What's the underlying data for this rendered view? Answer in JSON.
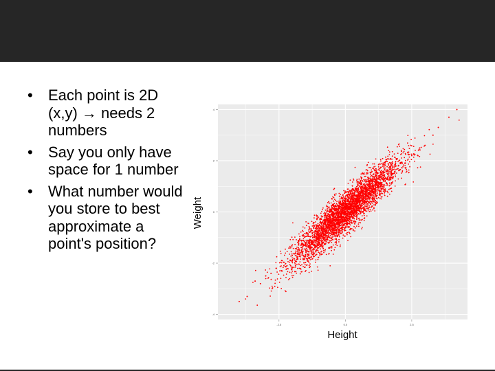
{
  "slide": {
    "bullets": [
      {
        "before": "Each point is 2D (x,y) ",
        "arrow": "→",
        "after": " needs 2 numbers"
      },
      {
        "before": "Say you only have space for 1 number",
        "arrow": "",
        "after": ""
      },
      {
        "before": "What number would you store to best approximate a point's position?",
        "arrow": "",
        "after": ""
      }
    ]
  },
  "colors": {
    "title_bar": "#262626",
    "panel_bg": "#EBEBEB",
    "grid": "#FFFFFF",
    "points": "#FF0000"
  },
  "chart_data": {
    "type": "scatter",
    "xlabel": "Height",
    "ylabel": "Weight",
    "xlim": [
      -4.8,
      4.6
    ],
    "ylim": [
      -4.2,
      4.2
    ],
    "x_ticks": [
      -2.5,
      0.0,
      2.5
    ],
    "x_tick_labels": [
      "-2.5",
      "0.0",
      "2.5"
    ],
    "y_ticks": [
      -4,
      -2,
      0,
      2,
      4
    ],
    "y_tick_labels": [
      "-4",
      "-2",
      "0",
      "2",
      "4"
    ],
    "grid": true,
    "correlation": 0.92,
    "n_points": 4000,
    "points": [
      [
        -4.0,
        -3.5
      ],
      [
        -3.7,
        -3.3
      ],
      [
        -3.4,
        -2.7
      ],
      [
        -3.2,
        -2.8
      ],
      [
        -3.0,
        -2.5
      ],
      [
        -2.8,
        -2.4
      ],
      [
        -2.6,
        -2.2
      ],
      [
        -2.4,
        -1.9
      ],
      [
        -2.2,
        -2.1
      ],
      [
        -2.0,
        -1.7
      ],
      [
        -1.5,
        -1.3
      ],
      [
        -1.0,
        -0.9
      ],
      [
        -0.5,
        -0.4
      ],
      [
        0.0,
        0.0
      ],
      [
        0.5,
        0.5
      ],
      [
        1.0,
        0.9
      ],
      [
        1.5,
        1.3
      ],
      [
        2.0,
        1.8
      ],
      [
        2.5,
        2.2
      ],
      [
        2.8,
        2.5
      ],
      [
        3.0,
        2.6
      ],
      [
        3.3,
        3.0
      ],
      [
        3.5,
        3.3
      ],
      [
        3.9,
        3.7
      ],
      [
        4.2,
        4.0
      ]
    ]
  }
}
